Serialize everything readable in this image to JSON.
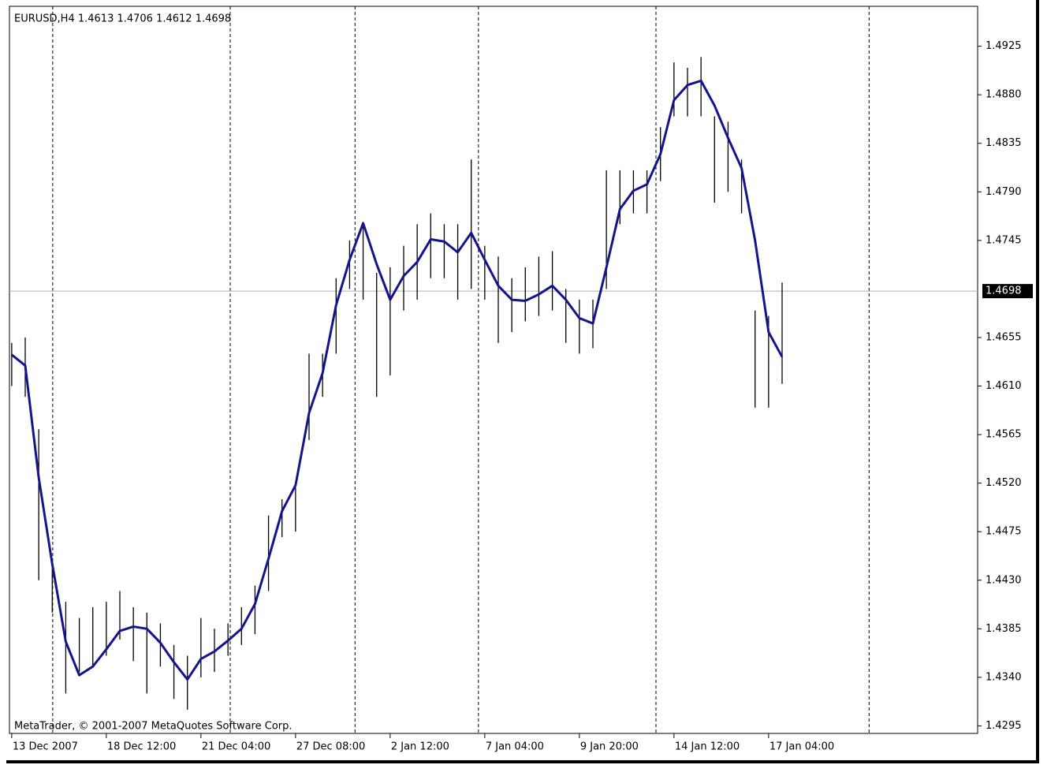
{
  "chart_data": {
    "type": "ohlc",
    "title": "EURUSD,H4  1.4613 1.4706 1.4612 1.4698",
    "footer": "MetaTrader, © 2001-2007 MetaQuotes Software Corp.",
    "x": [
      0,
      3,
      6,
      9,
      12,
      15,
      18,
      21,
      24,
      27,
      30,
      33,
      36,
      39,
      42,
      45,
      48,
      51,
      54,
      57,
      60,
      63,
      66,
      69,
      72,
      75,
      78,
      81,
      84,
      87,
      90,
      93,
      96,
      99,
      102,
      105,
      108,
      111,
      114,
      117,
      120,
      123,
      126,
      129,
      132,
      135,
      138,
      141,
      144,
      147,
      150,
      153,
      156,
      159,
      162,
      165,
      168,
      171
    ],
    "high": [
      1.465,
      1.4655,
      1.457,
      1.445,
      1.441,
      1.4395,
      1.4405,
      1.441,
      1.442,
      1.4405,
      1.44,
      1.439,
      1.437,
      1.436,
      1.4395,
      1.4385,
      1.439,
      1.4405,
      1.4425,
      1.449,
      1.4505,
      1.452,
      1.464,
      1.464,
      1.471,
      1.4745,
      1.476,
      1.4715,
      1.472,
      1.474,
      1.476,
      1.477,
      1.476,
      1.476,
      1.482,
      1.474,
      1.473,
      1.471,
      1.472,
      1.473,
      1.4735,
      1.47,
      1.469,
      1.469,
      1.481,
      1.481,
      1.481,
      1.481,
      1.485,
      1.491,
      1.4905,
      1.4915,
      1.486,
      1.4855,
      1.482,
      1.468,
      1.4675,
      1.4706
    ],
    "low": [
      1.461,
      1.46,
      1.443,
      1.44,
      1.4325,
      1.4345,
      1.435,
      1.436,
      1.4375,
      1.4355,
      1.4325,
      1.435,
      1.432,
      1.431,
      1.434,
      1.4345,
      1.436,
      1.437,
      1.438,
      1.442,
      1.447,
      1.4475,
      1.456,
      1.46,
      1.464,
      1.47,
      1.469,
      1.46,
      1.462,
      1.468,
      1.469,
      1.471,
      1.471,
      1.469,
      1.47,
      1.469,
      1.465,
      1.466,
      1.467,
      1.4675,
      1.468,
      1.465,
      1.464,
      1.4645,
      1.47,
      1.476,
      1.477,
      1.477,
      1.48,
      1.486,
      1.486,
      1.486,
      1.478,
      1.479,
      1.477,
      1.459,
      1.459,
      1.4612
    ],
    "bar_color": "#000000",
    "ma": {
      "color": "#14148c",
      "values": [
        1.4639,
        1.4629,
        1.4525,
        1.4445,
        1.4373,
        1.4342,
        1.435,
        1.4366,
        1.4383,
        1.4387,
        1.4385,
        1.4372,
        1.4354,
        1.4338,
        1.4357,
        1.4364,
        1.4374,
        1.4385,
        1.4408,
        1.445,
        1.4494,
        1.4518,
        1.4585,
        1.4622,
        1.4685,
        1.4727,
        1.4761,
        1.4723,
        1.469,
        1.4712,
        1.4725,
        1.4746,
        1.4744,
        1.4734,
        1.4752,
        1.4727,
        1.4703,
        1.469,
        1.4689,
        1.4695,
        1.4703,
        1.469,
        1.4673,
        1.4668,
        1.472,
        1.4774,
        1.4791,
        1.4797,
        1.4825,
        1.4875,
        1.4889,
        1.4893,
        1.487,
        1.484,
        1.4812,
        1.4745,
        1.466,
        1.4637
      ]
    },
    "current_price": 1.4698,
    "separators": [
      9.1,
      48.5,
      76.2,
      103.6,
      143,
      190.3
    ],
    "xlim": [
      -0.5,
      214.4
    ],
    "xticks": [
      {
        "value": 0,
        "label": "13 Dec 2007"
      },
      {
        "value": 21,
        "label": "18 Dec 12:00"
      },
      {
        "value": 42,
        "label": "21 Dec 04:00"
      },
      {
        "value": 63,
        "label": "27 Dec 08:00"
      },
      {
        "value": 84,
        "label": "2 Jan 12:00"
      },
      {
        "value": 105,
        "label": "7 Jan 04:00"
      },
      {
        "value": 126,
        "label": "9 Jan 20:00"
      },
      {
        "value": 147,
        "label": "14 Jan 12:00"
      },
      {
        "value": 168,
        "label": "17 Jan 04:00"
      }
    ],
    "ylim": [
      1.4288,
      1.4962
    ],
    "yticks": [
      {
        "value": 1.4925,
        "label": "1.4925"
      },
      {
        "value": 1.488,
        "label": "1.4880"
      },
      {
        "value": 1.4835,
        "label": "1.4835"
      },
      {
        "value": 1.479,
        "label": "1.4790"
      },
      {
        "value": 1.4745,
        "label": "1.4745"
      },
      {
        "value": 1.4655,
        "label": "1.4655"
      },
      {
        "value": 1.461,
        "label": "1.4610"
      },
      {
        "value": 1.4565,
        "label": "1.4565"
      },
      {
        "value": 1.452,
        "label": "1.4520"
      },
      {
        "value": 1.4475,
        "label": "1.4475"
      },
      {
        "value": 1.443,
        "label": "1.4430"
      },
      {
        "value": 1.4385,
        "label": "1.4385"
      },
      {
        "value": 1.434,
        "label": "1.4340"
      },
      {
        "value": 1.4295,
        "label": "1.4295"
      }
    ]
  }
}
